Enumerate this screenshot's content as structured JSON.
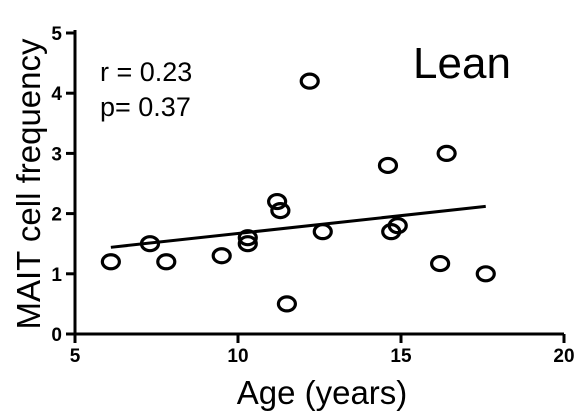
{
  "chart_data": {
    "type": "scatter",
    "title": "",
    "panel_label": "Lean",
    "xlabel": "Age (years)",
    "ylabel": "MAIT cell frequency",
    "xlim": [
      5,
      20
    ],
    "ylim": [
      0,
      5
    ],
    "xticks": [
      5,
      10,
      15,
      20
    ],
    "yticks": [
      0,
      1,
      2,
      3,
      4,
      5
    ],
    "grid": false,
    "stats": {
      "r_text": "r = 0.23",
      "p_text": "p= 0.37"
    },
    "points": [
      {
        "x": 6.1,
        "y": 1.2
      },
      {
        "x": 7.3,
        "y": 1.5
      },
      {
        "x": 7.8,
        "y": 1.2
      },
      {
        "x": 9.5,
        "y": 1.3
      },
      {
        "x": 10.3,
        "y": 1.5
      },
      {
        "x": 10.3,
        "y": 1.6
      },
      {
        "x": 11.2,
        "y": 2.2
      },
      {
        "x": 11.3,
        "y": 2.05
      },
      {
        "x": 11.5,
        "y": 0.5
      },
      {
        "x": 12.2,
        "y": 4.2
      },
      {
        "x": 12.6,
        "y": 1.7
      },
      {
        "x": 14.6,
        "y": 2.8
      },
      {
        "x": 14.7,
        "y": 1.7
      },
      {
        "x": 14.9,
        "y": 1.8
      },
      {
        "x": 16.2,
        "y": 1.17
      },
      {
        "x": 16.4,
        "y": 3.0
      },
      {
        "x": 17.6,
        "y": 1.0
      }
    ],
    "trendline": {
      "x": [
        6.1,
        17.6
      ],
      "y": [
        1.44,
        2.12
      ]
    }
  }
}
